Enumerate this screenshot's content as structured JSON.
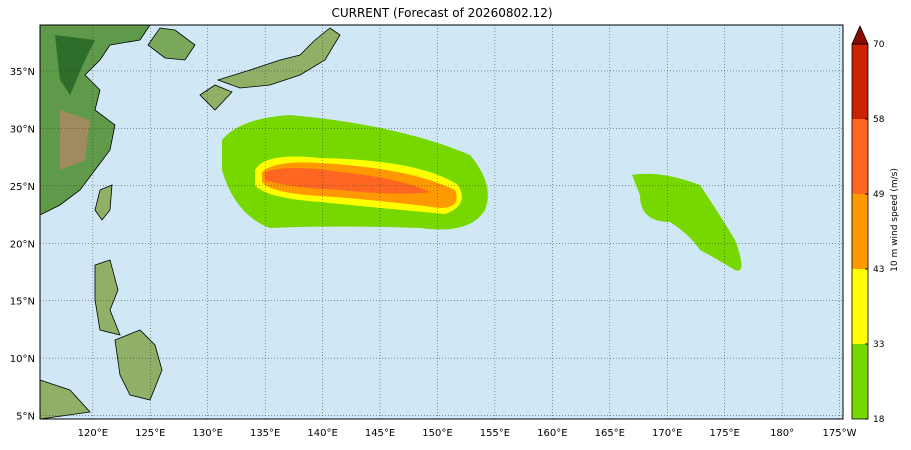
{
  "title": "CURRENT (Forecast of 20260802.12)",
  "map": {
    "lonlim": [
      115.4,
      185.3
    ],
    "latlim": [
      4.7,
      39
    ],
    "lon_ticks": [
      {
        "value": 120,
        "label": "120°E"
      },
      {
        "value": 125,
        "label": "125°E"
      },
      {
        "value": 130,
        "label": "130°E"
      },
      {
        "value": 135,
        "label": "135°E"
      },
      {
        "value": 140,
        "label": "140°E"
      },
      {
        "value": 145,
        "label": "145°E"
      },
      {
        "value": 150,
        "label": "150°E"
      },
      {
        "value": 155,
        "label": "155°E"
      },
      {
        "value": 160,
        "label": "160°E"
      },
      {
        "value": 165,
        "label": "165°E"
      },
      {
        "value": 170,
        "label": "170°E"
      },
      {
        "value": 175,
        "label": "175°E"
      },
      {
        "value": 180,
        "label": "180°"
      },
      {
        "value": 185,
        "label": "175°W"
      }
    ],
    "lat_ticks": [
      {
        "value": 5,
        "label": "5°N"
      },
      {
        "value": 10,
        "label": "10°N"
      },
      {
        "value": 15,
        "label": "15°N"
      },
      {
        "value": 20,
        "label": "20°N"
      },
      {
        "value": 25,
        "label": "25°N"
      },
      {
        "value": 30,
        "label": "30°N"
      },
      {
        "value": 35,
        "label": "35°N"
      }
    ]
  },
  "colorbar": {
    "label": "10 m wind speed (m/s)",
    "ticks": [
      18,
      33,
      43,
      49,
      58,
      70
    ],
    "colors": [
      "#77d800",
      "#ffff00",
      "#ff9900",
      "#ff6622",
      "#cc2200"
    ],
    "extend_color": "#8b0a00"
  }
}
